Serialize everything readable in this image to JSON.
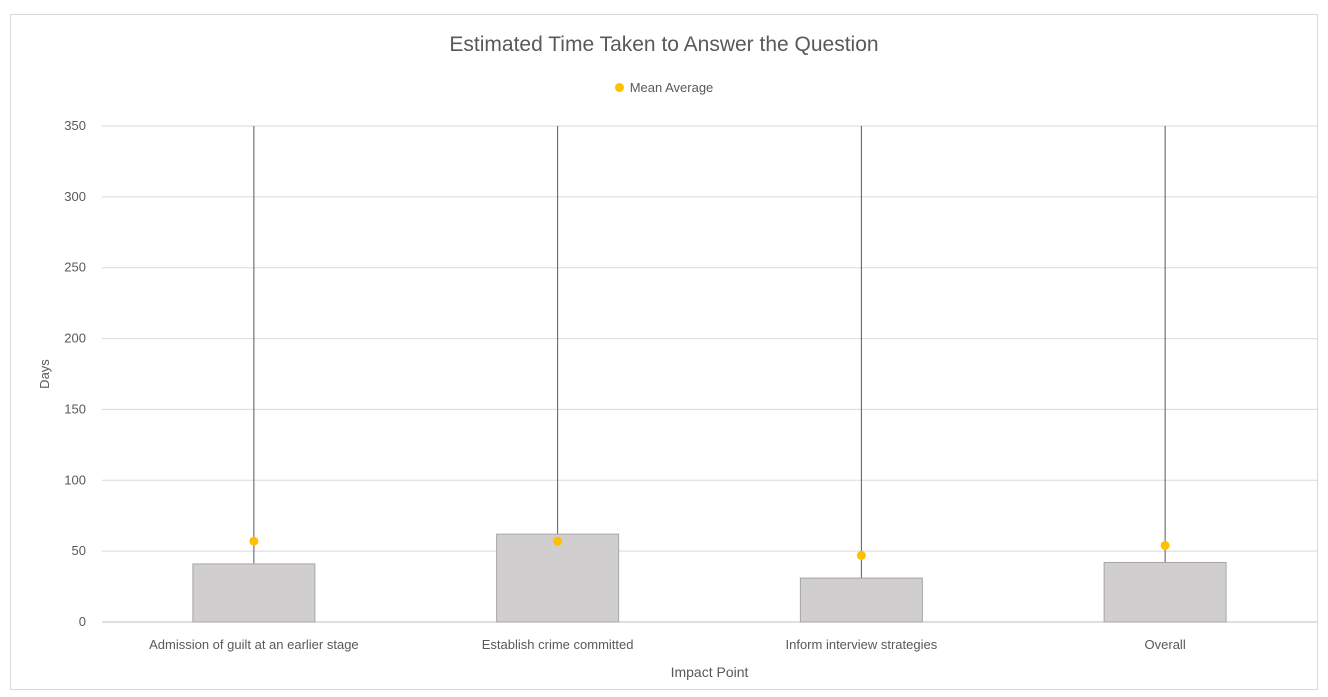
{
  "chart_data": {
    "type": "bar",
    "title": "Estimated Time Taken to Answer the Question",
    "xlabel": "Impact Point",
    "ylabel": "Days",
    "ylim": [
      0,
      350
    ],
    "yticks": [
      0,
      50,
      100,
      150,
      200,
      250,
      300,
      350
    ],
    "grid": true,
    "legend_position": "top",
    "categories": [
      "Admission of guilt at an earlier stage",
      "Establish crime committed",
      "Inform interview strategies",
      "Overall"
    ],
    "series": [
      {
        "values": [
          41,
          62,
          31,
          42
        ],
        "color": "#d0cece"
      },
      {
        "name": "Mean Average",
        "type": "scatter",
        "values": [
          57,
          57,
          47,
          54
        ],
        "color": "#ffc000"
      }
    ],
    "whiskers": [
      {
        "low": 41,
        "high": 350
      },
      {
        "low": 62,
        "high": 350
      },
      {
        "low": 31,
        "high": 350
      },
      {
        "low": 42,
        "high": 350
      }
    ]
  }
}
